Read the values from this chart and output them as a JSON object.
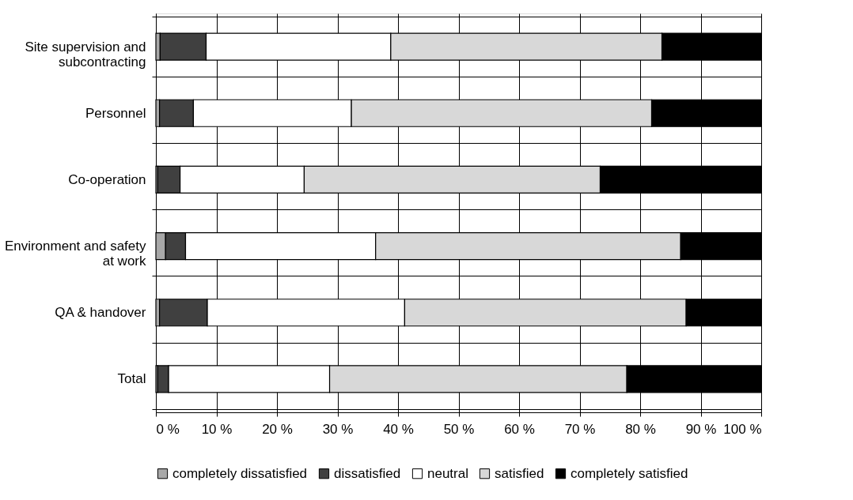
{
  "chart_data": {
    "type": "bar",
    "orientation": "horizontal",
    "stacked": true,
    "categories": [
      "Site supervision and subcontracting",
      "Personnel",
      "Co-operation",
      "Environment and safety at work",
      "QA & handover",
      "Total"
    ],
    "series": [
      {
        "name": "completely dissatisfied",
        "color": "#a8a8a8",
        "values": [
          0.7,
          0.6,
          0.3,
          1.6,
          0.6,
          0.3
        ]
      },
      {
        "name": "dissatisfied",
        "color": "#404040",
        "values": [
          7.6,
          5.6,
          3.7,
          3.3,
          7.9,
          1.8
        ]
      },
      {
        "name": "neutral",
        "color": "#ffffff",
        "values": [
          30.5,
          26.1,
          20.5,
          31.4,
          32.6,
          26.6
        ]
      },
      {
        "name": "satisfied",
        "color": "#d8d8d8",
        "values": [
          44.8,
          49.6,
          48.9,
          50.4,
          46.5,
          49.1
        ]
      },
      {
        "name": "completely satisfied",
        "color": "#000000",
        "values": [
          16.4,
          18.1,
          26.6,
          13.3,
          12.4,
          22.2
        ]
      }
    ],
    "xlim": [
      0,
      100
    ],
    "xticks": [
      {
        "value": 0,
        "label": "0 %"
      },
      {
        "value": 10,
        "label": "10 %"
      },
      {
        "value": 20,
        "label": "20 %"
      },
      {
        "value": 30,
        "label": "30 %"
      },
      {
        "value": 40,
        "label": "40 %"
      },
      {
        "value": 50,
        "label": "50 %"
      },
      {
        "value": 60,
        "label": "60 %"
      },
      {
        "value": 70,
        "label": "70 %"
      },
      {
        "value": 80,
        "label": "80 %"
      },
      {
        "value": 90,
        "label": "90 %"
      },
      {
        "value": 100,
        "label": "100 %"
      }
    ],
    "grid": true,
    "legend": "bottom"
  }
}
